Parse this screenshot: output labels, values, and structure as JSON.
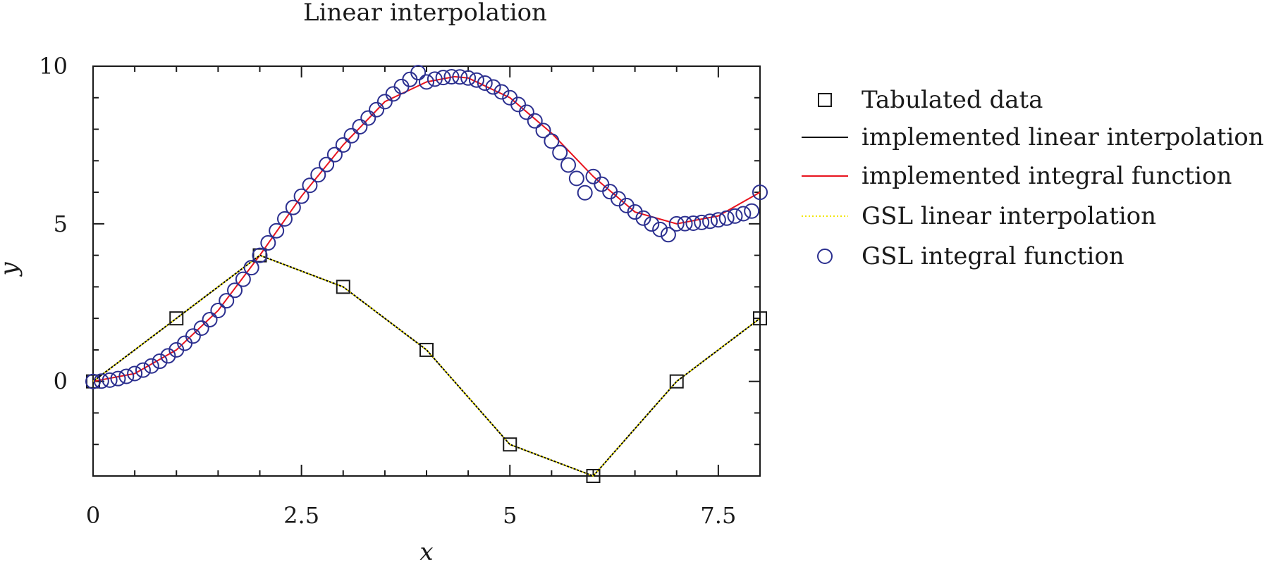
{
  "chart_data": {
    "type": "line",
    "title": "Linear interpolation",
    "xlabel": "x",
    "ylabel": "y",
    "xlim": [
      0,
      8
    ],
    "ylim": [
      -3,
      10
    ],
    "xticks": [
      0,
      2.5,
      5,
      7.5
    ],
    "xtick_labels": [
      "0",
      "2.5",
      "5",
      "7.5"
    ],
    "yticks": [
      0,
      5,
      10
    ],
    "ytick_labels": [
      "0",
      "5",
      "10"
    ],
    "grid": false,
    "legend_position": "outside-right",
    "colors": {
      "tabulated": "#1a1a1a",
      "implemented_linear": "#000000",
      "implemented_integral": "#e8141e",
      "gsl_linear": "#f2e600",
      "gsl_integral": "#2b2f8f"
    },
    "series": [
      {
        "key": "tabulated",
        "name": "Tabulated data",
        "marker": "square",
        "x": [
          0,
          1,
          2,
          3,
          4,
          5,
          6,
          7,
          8
        ],
        "y": [
          0,
          2,
          4,
          3,
          1,
          -2,
          -3,
          0,
          2
        ]
      },
      {
        "key": "implemented_linear",
        "name": "implemented linear interpolation",
        "style": "solid-line",
        "x": [
          0,
          1,
          2,
          3,
          4,
          5,
          6,
          7,
          8
        ],
        "y": [
          0,
          2,
          4,
          3,
          1,
          -2,
          -3,
          0,
          2
        ]
      },
      {
        "key": "implemented_integral",
        "name": "implemented integral function",
        "style": "solid-line",
        "x": [
          0,
          0.5,
          1,
          1.5,
          2,
          2.5,
          3,
          3.5,
          4,
          4.333,
          4.5,
          5,
          5.5,
          6,
          6.5,
          7,
          7.5,
          8
        ],
        "y": [
          0,
          0.25,
          1,
          2.25,
          4,
          5.875,
          7.5,
          8.875,
          9.5,
          9.667,
          9.625,
          9,
          7.875,
          6.5,
          5.375,
          5,
          5.25,
          6
        ]
      },
      {
        "key": "gsl_linear",
        "name": "GSL linear interpolation",
        "style": "dotted-line",
        "x": [
          0,
          1,
          2,
          3,
          4,
          5,
          6,
          7,
          8
        ],
        "y": [
          0,
          2,
          4,
          3,
          1,
          -2,
          -3,
          0,
          2
        ]
      },
      {
        "key": "gsl_integral",
        "name": "GSL integral function",
        "marker": "circle",
        "x": [
          0,
          0.1,
          0.2,
          0.3,
          0.4,
          0.5,
          0.6,
          0.7,
          0.8,
          0.9,
          1,
          1.1,
          1.2,
          1.3,
          1.4,
          1.5,
          1.6,
          1.7,
          1.8,
          1.9,
          2,
          2.1,
          2.2,
          2.3,
          2.4,
          2.5,
          2.6,
          2.7,
          2.8,
          2.9,
          3,
          3.1,
          3.2,
          3.3,
          3.4,
          3.5,
          3.6,
          3.7,
          3.8,
          3.9,
          4,
          4.1,
          4.2,
          4.3,
          4.4,
          4.5,
          4.6,
          4.7,
          4.8,
          4.9,
          5,
          5.1,
          5.2,
          5.3,
          5.4,
          5.5,
          5.6,
          5.7,
          5.8,
          5.9,
          6,
          6.1,
          6.2,
          6.3,
          6.4,
          6.5,
          6.6,
          6.7,
          6.8,
          6.9,
          7,
          7.1,
          7.2,
          7.3,
          7.4,
          7.5,
          7.6,
          7.7,
          7.8,
          7.9,
          8
        ],
        "y": [
          0,
          0.01,
          0.04,
          0.09,
          0.16,
          0.25,
          0.36,
          0.49,
          0.64,
          0.81,
          1,
          1.21,
          1.44,
          1.69,
          1.96,
          2.25,
          2.56,
          2.89,
          3.24,
          3.61,
          4,
          4.395,
          4.78,
          5.155,
          5.52,
          5.875,
          6.22,
          6.555,
          6.88,
          7.195,
          7.5,
          7.795,
          8.08,
          8.355,
          8.62,
          8.875,
          9.12,
          9.355,
          9.58,
          9.795,
          9.5,
          9.59,
          9.64,
          9.665,
          9.66,
          9.625,
          9.56,
          9.465,
          9.34,
          9.185,
          9,
          8.785,
          8.54,
          8.265,
          7.96,
          7.625,
          7.26,
          6.865,
          6.44,
          5.985,
          6.5,
          6.255,
          6.02,
          5.795,
          5.58,
          5.375,
          5.18,
          4.995,
          4.82,
          4.655,
          5,
          5.005,
          5.02,
          5.045,
          5.08,
          5.125,
          5.18,
          5.245,
          5.32,
          5.405,
          6
        ]
      }
    ]
  }
}
